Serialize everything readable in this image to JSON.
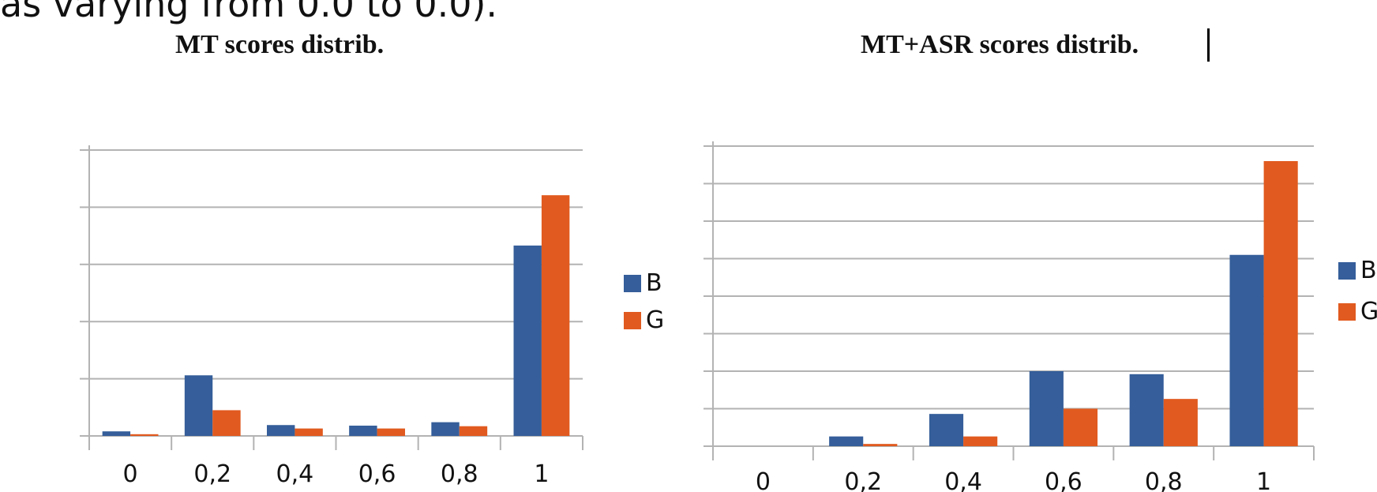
{
  "document": {
    "top_fragment": "as varying from 0.0 to 0.0)."
  },
  "chart_data": [
    {
      "type": "bar",
      "title": "MT scores distrib.",
      "categories": [
        "0",
        "0,2",
        "0,4",
        "0,6",
        "0,8",
        "1"
      ],
      "series": [
        {
          "name": "B",
          "color": "#355e9a",
          "values": [
            0.8,
            10.6,
            1.9,
            1.8,
            2.4,
            33.3
          ]
        },
        {
          "name": "G",
          "color": "#e15a1f",
          "values": [
            0.3,
            4.5,
            1.3,
            1.3,
            1.7,
            42.1
          ]
        }
      ],
      "ylim": [
        0,
        50
      ],
      "grid": true,
      "legend": "right"
    },
    {
      "type": "bar",
      "title": "MT+ASR scores distrib.",
      "categories": [
        "0",
        "0,2",
        "0,4",
        "0,6",
        "0,8",
        "1"
      ],
      "series": [
        {
          "name": "B",
          "color": "#355e9a",
          "values": [
            0,
            1.3,
            4.3,
            10,
            9.6,
            25.5
          ]
        },
        {
          "name": "G",
          "color": "#e15a1f",
          "values": [
            0,
            0.3,
            1.3,
            5,
            6.3,
            38
          ]
        }
      ],
      "ylim": [
        0,
        40
      ],
      "grid": true,
      "legend": "right"
    }
  ]
}
